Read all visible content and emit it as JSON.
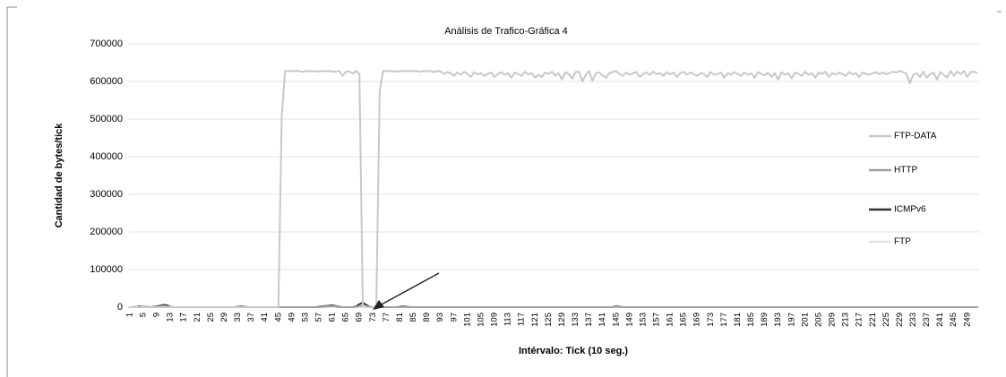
{
  "chart_data": {
    "type": "line",
    "title": "Análisis de Trafico-Gráfica 4",
    "xlabel": "Intérvalo: Tick (10 seg.)",
    "ylabel": "Cantidad de  bytes/tick",
    "ylim": [
      0,
      700000
    ],
    "yticks": [
      0,
      100000,
      200000,
      300000,
      400000,
      500000,
      600000,
      700000
    ],
    "grid": true,
    "legend": "right",
    "categories": [
      1,
      null,
      null,
      null,
      5,
      null,
      null,
      null,
      9,
      null,
      null,
      null,
      13,
      null,
      null,
      null,
      17,
      null,
      null,
      null,
      21,
      null,
      null,
      null,
      25,
      null,
      null,
      null,
      29,
      null,
      null,
      null,
      33,
      null,
      null,
      null,
      37,
      null,
      null,
      null,
      41,
      null,
      null,
      null,
      45,
      null,
      null,
      null,
      49,
      null,
      null,
      null,
      53,
      null,
      null,
      null,
      57,
      null,
      null,
      null,
      61,
      null,
      null,
      null,
      65,
      null,
      null,
      null,
      69,
      null,
      null,
      null,
      73,
      null,
      null,
      null,
      77,
      null,
      null,
      null,
      81,
      null,
      null,
      null,
      85,
      null,
      null,
      null,
      89,
      null,
      null,
      null,
      93,
      null,
      null,
      null,
      97,
      null,
      null,
      null,
      101,
      null,
      null,
      null,
      105,
      null,
      null,
      null,
      109,
      null,
      null,
      null,
      113,
      null,
      null,
      null,
      117,
      null,
      null,
      null,
      121,
      null,
      null,
      null,
      125,
      null,
      null,
      null,
      129,
      null,
      null,
      null,
      133,
      null,
      null,
      null,
      137,
      null,
      null,
      null,
      141,
      null,
      null,
      null,
      145,
      null,
      null,
      null,
      149,
      null,
      null,
      null,
      153,
      null,
      null,
      null,
      157,
      null,
      null,
      null,
      161,
      null,
      null,
      null,
      165,
      null,
      null,
      null,
      169,
      null,
      null,
      null,
      173,
      null,
      null,
      null,
      177,
      null,
      null,
      null,
      181,
      null,
      null,
      null,
      185,
      null,
      null,
      null,
      189,
      null,
      null,
      null,
      193,
      null,
      null,
      null,
      197,
      null,
      null,
      null,
      201,
      null,
      null,
      null,
      205,
      null,
      null,
      null,
      209,
      null,
      null,
      null,
      213,
      null,
      null,
      null,
      217,
      null,
      null,
      null,
      221,
      null,
      null,
      null,
      225,
      null,
      null,
      null,
      229,
      null,
      null,
      null,
      233,
      null,
      null,
      null,
      237,
      null,
      null,
      null,
      241,
      null,
      null,
      null,
      245,
      null,
      null,
      null,
      249,
      null,
      null,
      null
    ],
    "series": [
      {
        "name": "FTP-DATA",
        "color": "#c8c8c8",
        "values": [
          0,
          0,
          0,
          0,
          0,
          0,
          0,
          0,
          0,
          0,
          0,
          0,
          0,
          0,
          0,
          0,
          0,
          0,
          0,
          0,
          0,
          0,
          0,
          0,
          0,
          0,
          0,
          0,
          0,
          0,
          0,
          0,
          0,
          0,
          0,
          0,
          0,
          0,
          0,
          0,
          0,
          0,
          0,
          0,
          0,
          510000,
          628000,
          628000,
          627000,
          628000,
          628000,
          626000,
          627000,
          628000,
          627000,
          628000,
          626000,
          628000,
          627000,
          628000,
          627000,
          626000,
          628000,
          615000,
          626000,
          627000,
          621000,
          628000,
          620000,
          5000,
          0,
          0,
          0,
          0,
          575000,
          628000,
          628000,
          627000,
          628000,
          626000,
          628000,
          627000,
          628000,
          628000,
          627000,
          628000,
          626000,
          628000,
          627000,
          628000,
          625000,
          628000,
          627000,
          620000,
          625000,
          622000,
          615000,
          624000,
          618000,
          626000,
          620000,
          612000,
          625000,
          619000,
          622000,
          615000,
          620000,
          624000,
          612000,
          620000,
          625000,
          618000,
          622000,
          610000,
          624000,
          620000,
          615000,
          626000,
          619000,
          622000,
          610000,
          618000,
          612000,
          624000,
          620000,
          626000,
          615000,
          622000,
          605000,
          625000,
          620000,
          608000,
          625000,
          626000,
          600000,
          618000,
          628000,
          602000,
          622000,
          624000,
          616000,
          610000,
          622000,
          625000,
          628000,
          620000,
          615000,
          624000,
          618000,
          622000,
          625000,
          612000,
          620000,
          624000,
          618000,
          626000,
          620000,
          622000,
          615000,
          625000,
          619000,
          624000,
          612000,
          622000,
          626000,
          618000,
          624000,
          620000,
          615000,
          622000,
          620000,
          612000,
          625000,
          618000,
          620000,
          624000,
          610000,
          622000,
          618000,
          625000,
          620000,
          615000,
          624000,
          618000,
          622000,
          610000,
          625000,
          620000,
          616000,
          624000,
          612000,
          622000,
          605000,
          625000,
          618000,
          622000,
          608000,
          624000,
          620000,
          615000,
          626000,
          618000,
          622000,
          610000,
          624000,
          620000,
          626000,
          612000,
          622000,
          618000,
          624000,
          620000,
          615000,
          625000,
          619000,
          622000,
          612000,
          624000,
          620000,
          618000,
          622000,
          625000,
          619000,
          624000,
          620000,
          622000,
          626000,
          624000,
          628000,
          625000,
          620000,
          595000,
          618000,
          622000,
          612000,
          626000,
          610000,
          620000,
          624000,
          605000,
          625000,
          618000,
          610000,
          628000,
          615000,
          626000,
          620000,
          628000,
          612000,
          625000,
          626000,
          622000
        ]
      },
      {
        "name": "HTTP",
        "color": "#a0a0a0",
        "values": [
          0,
          0,
          1000,
          0,
          2000,
          1000,
          0,
          0,
          1000,
          2000,
          3000,
          2000,
          1000,
          0,
          0,
          0,
          0,
          0,
          0,
          0,
          0,
          0,
          0,
          0,
          0,
          0,
          0,
          0,
          0,
          0,
          0,
          0,
          0,
          1000,
          0,
          0,
          0,
          0,
          0,
          0,
          0,
          0,
          0,
          0,
          0,
          0,
          0,
          0,
          0,
          0,
          0,
          0,
          0,
          0,
          0,
          0,
          0,
          1000,
          2000,
          2000,
          3000,
          2000,
          0,
          0,
          0,
          0,
          0,
          1000,
          3000,
          4000,
          2000,
          0,
          0,
          0,
          0,
          0,
          0,
          0,
          0,
          0,
          0,
          1000,
          0,
          0,
          0,
          0,
          0,
          0,
          0,
          0,
          0,
          0,
          0,
          0,
          0,
          0,
          0,
          0,
          0,
          0,
          0,
          0,
          0,
          0,
          0,
          0,
          0,
          0,
          0,
          0,
          0,
          0,
          0,
          0,
          0,
          0,
          0,
          0,
          0,
          0,
          0,
          0,
          0,
          0,
          0,
          0,
          0,
          0,
          0,
          0,
          0,
          0,
          0,
          0,
          0,
          0,
          0,
          0,
          0,
          0,
          0,
          0,
          0,
          0,
          2000,
          0,
          0,
          0,
          0,
          0,
          0,
          0,
          0,
          0,
          0,
          0,
          0,
          0,
          0,
          0,
          0,
          0,
          0,
          0,
          0,
          0,
          0,
          0,
          0,
          0,
          0,
          0,
          0,
          0,
          0,
          0,
          0,
          0,
          0,
          0,
          0,
          0,
          0,
          0,
          0,
          0,
          0,
          0,
          0,
          0,
          0,
          0,
          0,
          0,
          0,
          0,
          0,
          0,
          0,
          0,
          0,
          0,
          0,
          0,
          0,
          0,
          0,
          0,
          0,
          0,
          0,
          0,
          0,
          0,
          0,
          0,
          0,
          0,
          0,
          0,
          0,
          0,
          0,
          0,
          0,
          0,
          0,
          0,
          0,
          0,
          0,
          0,
          0,
          0,
          0,
          0,
          0,
          0,
          0,
          0,
          0,
          0,
          0,
          0,
          0,
          0,
          0,
          0,
          0,
          0,
          0,
          0
        ]
      },
      {
        "name": "ICMPv6",
        "color": "#333333",
        "values": [
          0,
          0,
          1000,
          2000,
          0,
          1000,
          0,
          1000,
          2000,
          4000,
          6000,
          5000,
          1000,
          0,
          0,
          0,
          0,
          0,
          0,
          0,
          0,
          0,
          0,
          0,
          0,
          0,
          0,
          0,
          0,
          0,
          0,
          0,
          1000,
          2000,
          1000,
          0,
          0,
          0,
          0,
          0,
          0,
          0,
          0,
          0,
          0,
          0,
          0,
          0,
          0,
          0,
          0,
          0,
          0,
          0,
          0,
          0,
          1000,
          2000,
          3000,
          4000,
          5000,
          3000,
          1000,
          0,
          0,
          0,
          0,
          2000,
          8000,
          12000,
          6000,
          1000,
          0,
          0,
          0,
          0,
          0,
          0,
          0,
          0,
          1000,
          2000,
          1000,
          0,
          0,
          0,
          0,
          0,
          0,
          0,
          0,
          0,
          0,
          0,
          0,
          0,
          0,
          0,
          0,
          0,
          0,
          0,
          0,
          0,
          0,
          0,
          0,
          0,
          0,
          0,
          0,
          0,
          0,
          0,
          0,
          0,
          0,
          0,
          0,
          0,
          0,
          0,
          0,
          0,
          0,
          0,
          0,
          0,
          0,
          0,
          0,
          0,
          0,
          0,
          0,
          0,
          0,
          0,
          0,
          0,
          0,
          0,
          0,
          0,
          3000,
          1000,
          0,
          0,
          0,
          0,
          0,
          0,
          0,
          0,
          0,
          0,
          0,
          0,
          0,
          0,
          0,
          0,
          0,
          0,
          0,
          0,
          0,
          0,
          0,
          0,
          0,
          0,
          0,
          0,
          0,
          0,
          0,
          0,
          0,
          0,
          0,
          0,
          0,
          0,
          0,
          0,
          0,
          0,
          0,
          0,
          0,
          0,
          0,
          0,
          0,
          0,
          0,
          0,
          0,
          0,
          0,
          0,
          0,
          0,
          0,
          0,
          0,
          0,
          0,
          0,
          0,
          0,
          0,
          0,
          0,
          0,
          0,
          0,
          0,
          0,
          0,
          0,
          0,
          0,
          0,
          0,
          0,
          0,
          0,
          0,
          0,
          0,
          0,
          0,
          0,
          0,
          0,
          0,
          0,
          0,
          0,
          0,
          0,
          0,
          0,
          0,
          0,
          0,
          0,
          0,
          0,
          0
        ]
      },
      {
        "name": "FTP",
        "color": "#e6e6e6",
        "values": [
          0,
          0,
          0,
          0,
          0,
          0,
          0,
          0,
          0,
          0,
          0,
          0,
          0,
          0,
          0,
          0,
          0,
          0,
          0,
          0,
          0,
          0,
          0,
          0,
          0,
          0,
          0,
          0,
          0,
          0,
          0,
          0,
          0,
          0,
          0,
          0,
          0,
          0,
          0,
          0,
          0,
          0,
          0,
          0,
          0,
          0,
          0,
          0,
          0,
          0,
          0,
          0,
          0,
          0,
          0,
          0,
          0,
          0,
          0,
          0,
          0,
          0,
          0,
          0,
          0,
          0,
          0,
          0,
          0,
          0,
          0,
          0,
          0,
          0,
          0,
          0,
          0,
          0,
          0,
          0,
          0,
          0,
          0,
          0,
          0,
          0,
          0,
          0,
          0,
          0,
          0,
          0,
          0,
          0,
          0,
          0,
          0,
          0,
          0,
          0,
          0,
          0,
          0,
          0,
          0,
          0,
          0,
          0,
          0,
          0,
          0,
          0,
          0,
          0,
          0,
          0,
          0,
          0,
          0,
          0,
          0,
          0,
          0,
          0,
          0,
          0,
          0,
          0,
          0,
          0,
          0,
          0,
          0,
          0,
          0,
          0,
          0,
          0,
          0,
          0,
          0,
          0,
          0,
          0,
          0,
          0,
          0,
          0,
          0,
          0,
          0,
          0,
          0,
          0,
          0,
          0,
          0,
          0,
          0,
          0,
          0,
          0,
          0,
          0,
          0,
          0,
          0,
          0,
          0,
          0,
          0,
          0,
          0,
          0,
          0,
          0,
          0,
          0,
          0,
          0,
          0,
          0,
          0,
          0,
          0,
          0,
          0,
          0,
          0,
          0,
          0,
          0,
          0,
          0,
          0,
          0,
          0,
          0,
          0,
          0,
          0,
          0,
          0,
          0,
          0,
          0,
          0,
          0,
          0,
          0,
          0,
          0,
          0,
          0,
          0,
          0,
          0,
          0,
          0,
          0,
          0,
          0,
          0,
          0,
          0,
          0,
          0,
          0,
          0,
          0,
          0,
          0,
          0,
          0,
          0,
          0,
          0,
          0,
          0,
          0,
          0,
          0,
          0,
          0,
          0,
          0,
          0,
          0,
          0,
          0,
          0,
          0
        ]
      }
    ]
  }
}
